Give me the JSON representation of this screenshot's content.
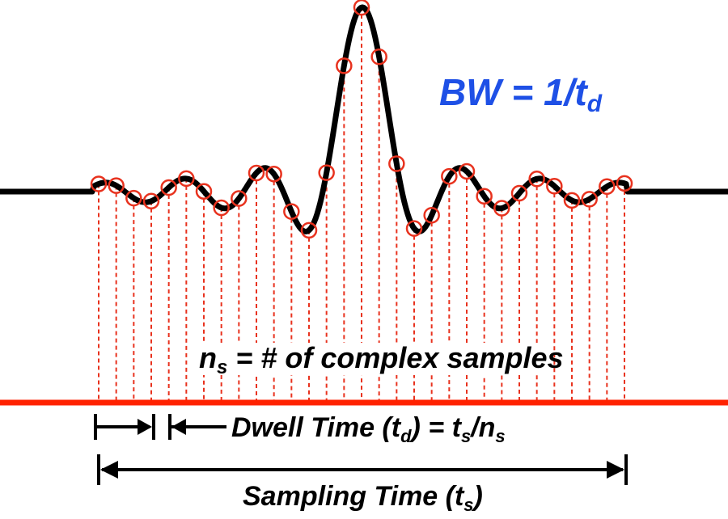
{
  "diagram": {
    "bandwidth_label": "BW = 1/t",
    "bandwidth_sub": "d",
    "samples_label": "n",
    "samples_sub": "s",
    "samples_rest": " = # of complex samples",
    "dwell_label": "Dwell Time (t",
    "dwell_sub1": "d",
    "dwell_mid": ") = t",
    "dwell_sub2": "s",
    "dwell_slash": "/n",
    "dwell_sub3": "s",
    "sampling_label": "Sampling Time (t",
    "sampling_sub": "s",
    "sampling_close": ")"
  },
  "colors": {
    "signal": "#000000",
    "samples": "#e8321e",
    "axis": "#ff2200",
    "bandwidth_text": "#1e50e6",
    "text": "#000000"
  }
}
